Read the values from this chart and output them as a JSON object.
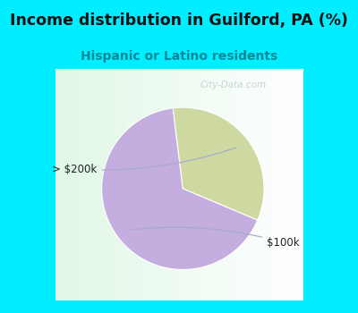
{
  "title": "Income distribution in Guilford, PA (%)",
  "subtitle": "Hispanic or Latino residents",
  "slices": [
    {
      "label": "$100k",
      "value": 66.7,
      "color": "#c4aee0"
    },
    {
      "label": "> $200k",
      "value": 33.3,
      "color": "#cdd9a0"
    }
  ],
  "bg_cyan": "#00eeff",
  "title_color": "#111111",
  "subtitle_color": "#008899",
  "label_color": "#222222",
  "line_color": "#aaaacc",
  "watermark": "City-Data.com",
  "startangle": 97,
  "figsize": [
    4.0,
    3.5
  ],
  "dpi": 100,
  "title_fontsize": 12.5,
  "subtitle_fontsize": 10,
  "label_fontsize": 8.5
}
